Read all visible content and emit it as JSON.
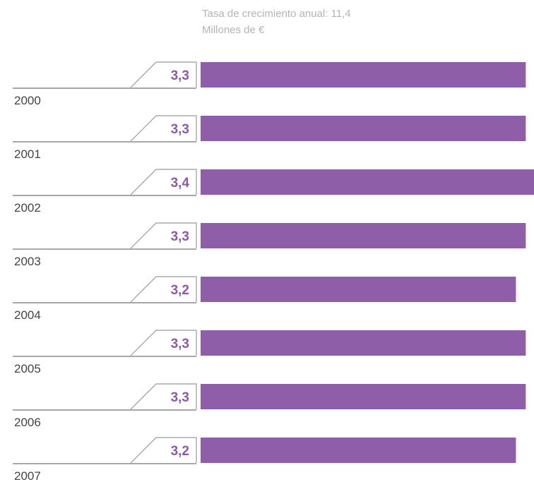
{
  "header": {
    "subtitle": "Tasa de crecimiento anual: 11,4",
    "unit": "Millones de €"
  },
  "chart_data": {
    "type": "bar",
    "orientation": "horizontal",
    "categories": [
      "2000",
      "2001",
      "2002",
      "2003",
      "2004",
      "2005",
      "2006",
      "2007"
    ],
    "values": [
      3.3,
      3.3,
      3.4,
      3.3,
      3.2,
      3.3,
      3.3,
      3.2
    ],
    "value_labels": [
      "3,3",
      "3,3",
      "3,4",
      "3,3",
      "3,2",
      "3,3",
      "3,3",
      "3,2"
    ],
    "bar_color": "#8e5ea8",
    "label_color": "#8c5aa7",
    "grid": false,
    "legend": "none"
  }
}
